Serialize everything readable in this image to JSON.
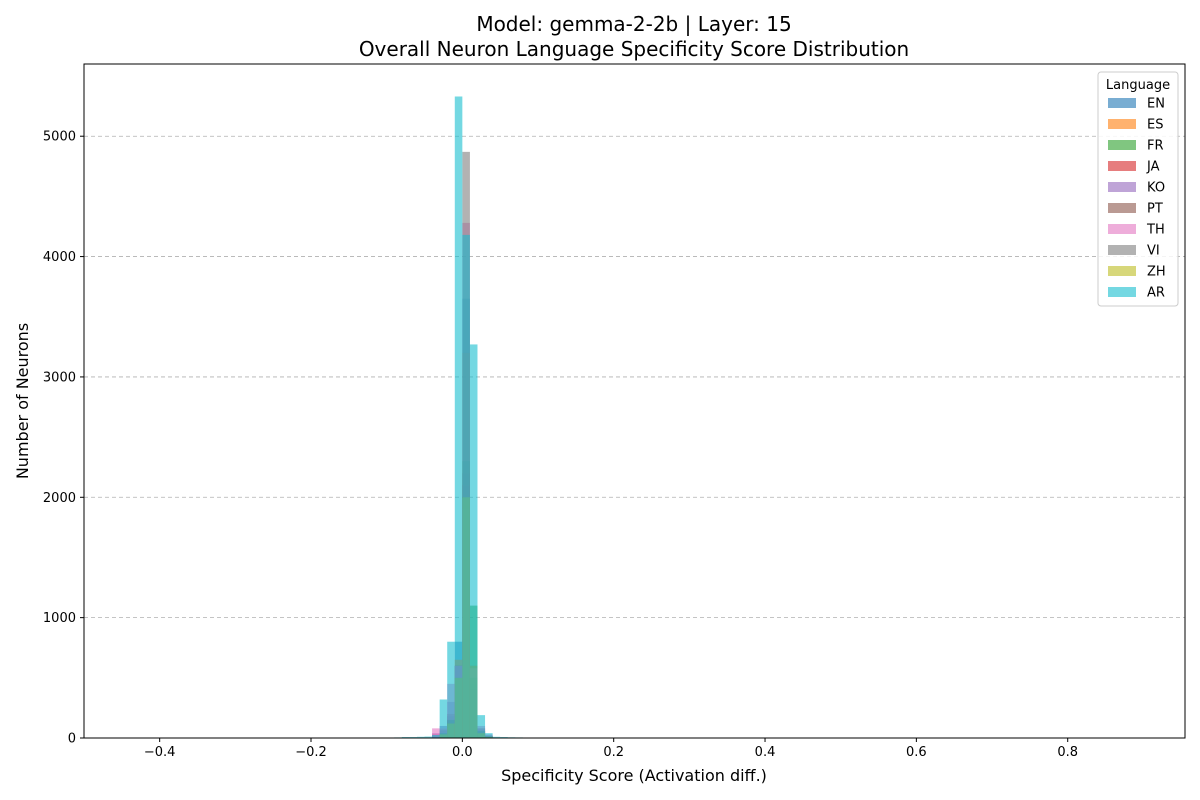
{
  "chart_data": {
    "type": "histogram",
    "title": "Model: gemma-2-2b | Layer: 15",
    "subtitle": "Overall Neuron Language Specificity Score Distribution",
    "xlabel": "Specificity Score (Activation diff.)",
    "ylabel": "Number of Neurons",
    "xlim": [
      -0.5,
      0.955
    ],
    "ylim": [
      0,
      5600
    ],
    "x_ticks": [
      -0.4,
      -0.2,
      0.0,
      0.2,
      0.4,
      0.6,
      0.8
    ],
    "x_tick_labels": [
      "−0.4",
      "−0.2",
      "0.0",
      "0.2",
      "0.4",
      "0.6",
      "0.8"
    ],
    "y_ticks": [
      0,
      1000,
      2000,
      3000,
      4000,
      5000
    ],
    "y_tick_labels": [
      "0",
      "1000",
      "2000",
      "3000",
      "4000",
      "5000"
    ],
    "grid": "horizontal dashed",
    "legend_title": "Language",
    "legend_position": "top-right",
    "bin_width": 0.01,
    "series": [
      {
        "name": "EN",
        "color": "#1f77b4",
        "bins": [
          [
            -0.04,
            20
          ],
          [
            -0.03,
            60
          ],
          [
            -0.02,
            180
          ],
          [
            -0.01,
            800
          ],
          [
            0.0,
            3650
          ],
          [
            0.01,
            450
          ],
          [
            0.02,
            60
          ],
          [
            0.03,
            20
          ]
        ]
      },
      {
        "name": "ES",
        "color": "#ff7f0e",
        "bins": [
          [
            -0.03,
            30
          ],
          [
            -0.02,
            150
          ],
          [
            -0.01,
            650
          ],
          [
            0.0,
            3200
          ],
          [
            0.01,
            500
          ],
          [
            0.02,
            50
          ],
          [
            0.03,
            10
          ]
        ]
      },
      {
        "name": "FR",
        "color": "#2ca02c",
        "bins": [
          [
            -0.03,
            30
          ],
          [
            -0.02,
            140
          ],
          [
            -0.01,
            600
          ],
          [
            0.0,
            2300
          ],
          [
            0.01,
            1100
          ],
          [
            0.02,
            60
          ],
          [
            0.03,
            15
          ]
        ]
      },
      {
        "name": "JA",
        "color": "#d62728",
        "bins": [
          [
            -0.18,
            3
          ],
          [
            -0.04,
            30
          ],
          [
            -0.03,
            70
          ],
          [
            -0.02,
            200
          ],
          [
            -0.01,
            600
          ],
          [
            0.0,
            2100
          ],
          [
            0.01,
            300
          ],
          [
            0.02,
            80
          ],
          [
            0.03,
            20
          ],
          [
            0.11,
            3
          ]
        ]
      },
      {
        "name": "KO",
        "color": "#9467bd",
        "bins": [
          [
            -0.04,
            40
          ],
          [
            -0.03,
            100
          ],
          [
            -0.02,
            300
          ],
          [
            -0.01,
            600
          ],
          [
            0.0,
            1900
          ],
          [
            0.01,
            400
          ],
          [
            0.02,
            80
          ],
          [
            0.03,
            20
          ]
        ]
      },
      {
        "name": "PT",
        "color": "#8c564b",
        "bins": [
          [
            -0.03,
            30
          ],
          [
            -0.02,
            120
          ],
          [
            -0.01,
            500
          ],
          [
            0.0,
            2200
          ],
          [
            0.01,
            600
          ],
          [
            0.02,
            40
          ],
          [
            0.03,
            10
          ]
        ]
      },
      {
        "name": "TH",
        "color": "#e377c2",
        "bins": [
          [
            -0.04,
            80
          ],
          [
            -0.03,
            80
          ],
          [
            -0.02,
            450
          ],
          [
            -0.01,
            600
          ],
          [
            0.0,
            4280
          ],
          [
            0.01,
            580
          ],
          [
            0.02,
            100
          ],
          [
            0.03,
            30
          ]
        ]
      },
      {
        "name": "VI",
        "color": "#7f7f7f",
        "bins": [
          [
            -0.03,
            40
          ],
          [
            -0.02,
            150
          ],
          [
            -0.01,
            500
          ],
          [
            0.0,
            4870
          ],
          [
            0.01,
            500
          ],
          [
            0.02,
            60
          ],
          [
            0.03,
            15
          ]
        ]
      },
      {
        "name": "ZH",
        "color": "#bcbd22",
        "bins": [
          [
            -0.03,
            30
          ],
          [
            -0.02,
            120
          ],
          [
            -0.01,
            500
          ],
          [
            0.0,
            2000
          ],
          [
            0.01,
            600
          ],
          [
            0.02,
            40
          ],
          [
            0.03,
            10
          ]
        ]
      },
      {
        "name": "AR",
        "color": "#17becf",
        "bins": [
          [
            -0.1,
            4
          ],
          [
            -0.09,
            5
          ],
          [
            -0.08,
            8
          ],
          [
            -0.07,
            8
          ],
          [
            -0.06,
            10
          ],
          [
            -0.05,
            12
          ],
          [
            -0.04,
            25
          ],
          [
            -0.03,
            320
          ],
          [
            -0.02,
            800
          ],
          [
            -0.01,
            5330
          ],
          [
            0.0,
            4180
          ],
          [
            0.01,
            3270
          ],
          [
            0.02,
            190
          ],
          [
            0.03,
            40
          ],
          [
            0.04,
            10
          ],
          [
            0.05,
            8
          ],
          [
            0.06,
            6
          ],
          [
            0.07,
            5
          ],
          [
            0.08,
            4
          ],
          [
            0.09,
            3
          ]
        ]
      }
    ]
  }
}
